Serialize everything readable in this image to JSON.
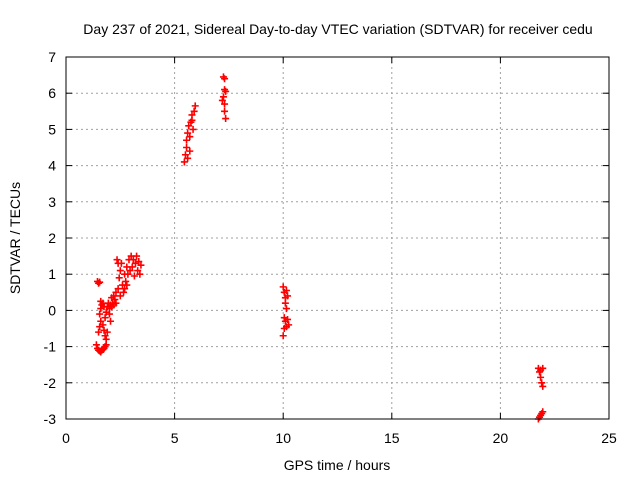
{
  "chart_data": {
    "type": "scatter",
    "title": "Day 237 of 2021, Sidereal Day-to-day VTEC variation (SDTVAR) for receiver cedu",
    "xlabel": "GPS time / hours",
    "ylabel": "SDTVAR / TECUs",
    "xlim": [
      0,
      25
    ],
    "ylim": [
      -3,
      7
    ],
    "x_ticks": [
      0,
      5,
      10,
      15,
      20,
      25
    ],
    "x_tick_labels": [
      "0",
      "5",
      "10",
      "15",
      "20",
      "25"
    ],
    "y_ticks": [
      -3,
      -2,
      -1,
      0,
      1,
      2,
      3,
      4,
      5,
      6,
      7
    ],
    "y_tick_labels": [
      "-3",
      "-2",
      "-1",
      "0",
      "1",
      "2",
      "3",
      "4",
      "5",
      "6",
      "7"
    ],
    "grid": true,
    "marker": "plus",
    "color": "#ff0000",
    "series": [
      {
        "points": [
          [
            1.45,
            0.8
          ],
          [
            1.5,
            0.75
          ],
          [
            1.55,
            0.78
          ],
          [
            1.4,
            -0.95
          ],
          [
            1.45,
            -1.05
          ],
          [
            1.5,
            -1.1
          ],
          [
            1.55,
            -1.12
          ],
          [
            1.6,
            -1.15
          ],
          [
            1.65,
            -1.1
          ],
          [
            1.7,
            -1.08
          ],
          [
            1.75,
            -1.05
          ],
          [
            1.8,
            -1.0
          ],
          [
            1.85,
            -0.95
          ],
          [
            1.5,
            -0.6
          ],
          [
            1.55,
            -0.45
          ],
          [
            1.6,
            -0.3
          ],
          [
            1.55,
            -0.1
          ],
          [
            1.6,
            0.05
          ],
          [
            1.65,
            0.15
          ],
          [
            1.7,
            0.2
          ],
          [
            1.6,
            0.25
          ],
          [
            1.75,
            0.1
          ],
          [
            1.7,
            -0.4
          ],
          [
            1.75,
            -0.55
          ],
          [
            1.8,
            -0.7
          ],
          [
            1.85,
            -0.8
          ],
          [
            1.9,
            -0.6
          ],
          [
            1.8,
            -0.2
          ],
          [
            1.85,
            -0.05
          ],
          [
            1.9,
            0.1
          ],
          [
            1.95,
            0.2
          ],
          [
            2.0,
            -0.1
          ],
          [
            2.0,
            0.05
          ],
          [
            2.05,
            -0.3
          ],
          [
            2.05,
            0.15
          ],
          [
            2.1,
            0.1
          ],
          [
            2.1,
            0.35
          ],
          [
            2.15,
            0.2
          ],
          [
            2.2,
            0.4
          ],
          [
            2.2,
            0.15
          ],
          [
            2.25,
            0.3
          ],
          [
            2.3,
            0.5
          ],
          [
            2.3,
            0.2
          ],
          [
            2.35,
            1.4
          ],
          [
            2.4,
            1.3
          ],
          [
            2.4,
            0.6
          ],
          [
            2.45,
            0.9
          ],
          [
            2.5,
            1.1
          ],
          [
            2.5,
            0.4
          ],
          [
            2.55,
            1.3
          ],
          [
            2.6,
            0.7
          ],
          [
            2.65,
            0.5
          ],
          [
            2.7,
            0.6
          ],
          [
            2.7,
            1.0
          ],
          [
            2.75,
            0.8
          ],
          [
            2.8,
            1.2
          ],
          [
            2.8,
            0.7
          ],
          [
            2.85,
            1.0
          ],
          [
            2.9,
            1.4
          ],
          [
            2.95,
            1.1
          ],
          [
            3.0,
            1.5
          ],
          [
            3.05,
            1.2
          ],
          [
            3.1,
            1.4
          ],
          [
            3.15,
            0.95
          ],
          [
            3.2,
            1.3
          ],
          [
            3.25,
            1.5
          ],
          [
            3.3,
            1.1
          ],
          [
            3.35,
            1.35
          ],
          [
            3.4,
            1.0
          ],
          [
            3.45,
            1.25
          ],
          [
            5.45,
            4.1
          ],
          [
            5.5,
            4.3
          ],
          [
            5.55,
            4.5
          ],
          [
            5.55,
            4.7
          ],
          [
            5.6,
            4.9
          ],
          [
            5.65,
            5.1
          ],
          [
            5.7,
            4.8
          ],
          [
            5.75,
            5.2
          ],
          [
            5.8,
            5.4
          ],
          [
            5.85,
            5.0
          ],
          [
            5.9,
            5.5
          ],
          [
            5.95,
            5.65
          ],
          [
            5.7,
            4.4
          ],
          [
            5.6,
            4.2
          ],
          [
            5.8,
            5.25
          ],
          [
            7.25,
            6.45
          ],
          [
            7.3,
            6.4
          ],
          [
            7.3,
            6.1
          ],
          [
            7.25,
            5.9
          ],
          [
            7.3,
            5.7
          ],
          [
            7.3,
            5.5
          ],
          [
            7.35,
            5.3
          ],
          [
            7.2,
            5.8
          ],
          [
            7.35,
            6.05
          ],
          [
            10.0,
            0.65
          ],
          [
            10.05,
            0.5
          ],
          [
            10.1,
            0.35
          ],
          [
            10.15,
            0.55
          ],
          [
            10.2,
            0.4
          ],
          [
            10.1,
            0.2
          ],
          [
            10.15,
            0.05
          ],
          [
            10.0,
            -0.7
          ],
          [
            10.05,
            -0.5
          ],
          [
            10.1,
            -0.3
          ],
          [
            10.15,
            -0.45
          ],
          [
            10.2,
            -0.25
          ],
          [
            10.25,
            -0.4
          ],
          [
            10.05,
            -0.2
          ],
          [
            21.75,
            -1.6
          ],
          [
            21.8,
            -1.7
          ],
          [
            21.85,
            -1.85
          ],
          [
            21.9,
            -2.0
          ],
          [
            21.95,
            -2.1
          ],
          [
            21.85,
            -1.65
          ],
          [
            21.95,
            -1.6
          ],
          [
            21.75,
            -3.0
          ],
          [
            21.8,
            -2.95
          ],
          [
            21.85,
            -2.9
          ],
          [
            21.9,
            -2.85
          ],
          [
            21.95,
            -2.8
          ]
        ]
      }
    ]
  }
}
